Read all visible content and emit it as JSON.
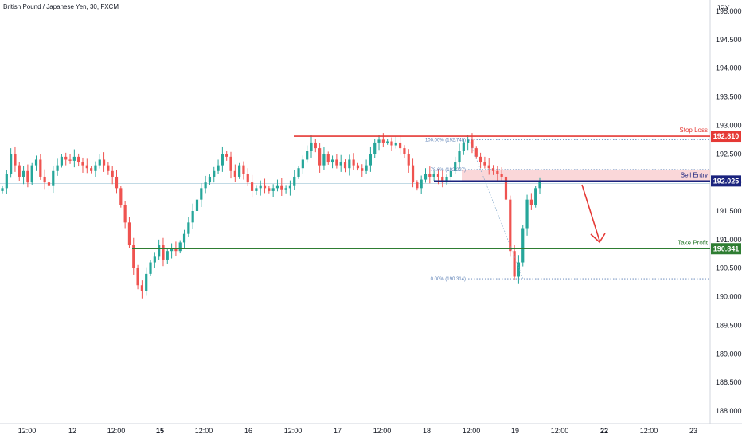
{
  "header": {
    "title": "British Pound / Japanese Yen, 30, FXCM"
  },
  "currency": "JPY",
  "chart_data": {
    "type": "candlestick",
    "symbol": "GBPJPY",
    "timeframe": "30",
    "y_axis": {
      "ylim": [
        187.9,
        195.35
      ],
      "ticks": [
        "195.000",
        "194.500",
        "194.000",
        "193.500",
        "193.000",
        "192.500",
        "192.000",
        "191.500",
        "191.000",
        "190.500",
        "190.000",
        "189.500",
        "189.000",
        "188.500",
        "188.000"
      ]
    },
    "x_axis": {
      "ticks": [
        "12:00",
        "12",
        "12:00",
        "15",
        "12:00",
        "16",
        "12:00",
        "17",
        "12:00",
        "18",
        "12:00",
        "19",
        "12:00",
        "22",
        "12:00",
        "23"
      ],
      "bold_ticks": [
        "15",
        "22"
      ]
    },
    "levels": [
      {
        "name": "Stop Loss",
        "price": 192.81,
        "badge": "192.810",
        "color": "#e53935"
      },
      {
        "name": "Sell Entry",
        "price": 192.025,
        "badge": "192.025",
        "color": "#1a237e"
      },
      {
        "name": "Take Profit",
        "price": 190.841,
        "badge": "190.841",
        "color": "#2e7d32"
      }
    ],
    "fib": [
      {
        "label": "100.00% (192.748)",
        "price": 192.748
      },
      {
        "label": "78.6% (192.227)",
        "price": 192.227
      },
      {
        "label": "0.00% (190.314)",
        "price": 190.314
      }
    ],
    "colors": {
      "up": "#26a69a",
      "down": "#ef5350",
      "zone": "#f8c9cc"
    },
    "close_series": [
      191.9,
      192.15,
      192.5,
      192.3,
      192.1,
      192.2,
      192.0,
      192.3,
      192.4,
      192.1,
      192.0,
      191.95,
      192.2,
      192.3,
      192.45,
      192.4,
      192.38,
      192.45,
      192.35,
      192.3,
      192.25,
      192.2,
      192.3,
      192.4,
      192.3,
      192.2,
      192.1,
      191.9,
      191.6,
      191.3,
      190.9,
      190.5,
      190.2,
      190.1,
      190.4,
      190.6,
      190.7,
      190.9,
      190.65,
      190.8,
      190.85,
      190.8,
      190.95,
      191.1,
      191.3,
      191.5,
      191.7,
      191.9,
      192.0,
      192.1,
      192.2,
      192.3,
      192.5,
      192.45,
      192.2,
      192.1,
      192.3,
      192.15,
      192.0,
      191.85,
      191.9,
      191.95,
      191.9,
      191.85,
      191.9,
      191.95,
      191.88,
      191.9,
      191.95,
      192.1,
      192.25,
      192.4,
      192.55,
      192.7,
      192.6,
      192.3,
      192.5,
      192.35,
      192.4,
      192.3,
      192.35,
      192.25,
      192.4,
      192.3,
      192.25,
      192.2,
      192.3,
      192.5,
      192.7,
      192.75,
      192.7,
      192.72,
      192.65,
      192.7,
      192.6,
      192.5,
      192.3,
      192.0,
      191.9,
      192.05,
      192.15,
      192.1,
      192.15,
      192.1,
      192.0,
      192.1,
      192.2,
      192.35,
      192.55,
      192.7,
      192.75,
      192.6,
      192.45,
      192.35,
      192.3,
      192.25,
      192.2,
      192.15,
      192.1,
      191.7,
      190.8,
      190.35,
      190.6,
      191.2,
      191.7,
      191.6,
      191.9,
      192.02
    ]
  }
}
